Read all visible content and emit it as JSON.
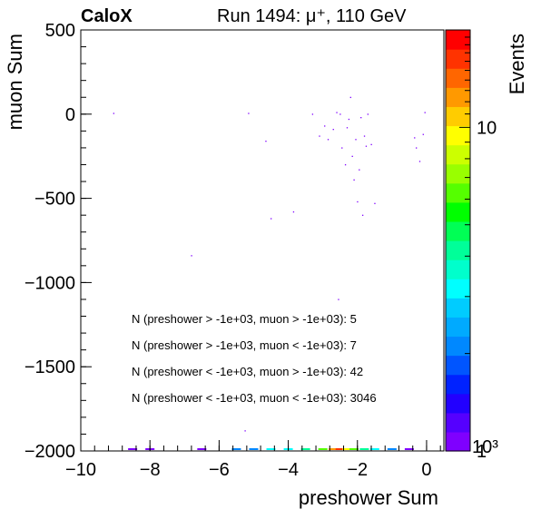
{
  "header": {
    "experiment": "CaloX",
    "run_info": "Run 1494:   μ⁺, 110 GeV"
  },
  "chart_data": {
    "type": "heatmap",
    "xlabel": "preshower Sum",
    "ylabel": "muon Sum",
    "zlabel": "Events",
    "xlim": [
      -10,
      0.5
    ],
    "ylim": [
      -2000,
      500
    ],
    "x_ticks": [
      "−10",
      "−8",
      "−6",
      "−4",
      "−2",
      "0"
    ],
    "x_tick_values": [
      -10,
      -8,
      -6,
      -4,
      -2,
      0
    ],
    "y_ticks": [
      "500",
      "0",
      "−500",
      "−1000",
      "−1500",
      "−2000"
    ],
    "y_tick_values": [
      500,
      0,
      -500,
      -1000,
      -1500,
      -2000
    ],
    "z_scale": "log",
    "z_range": [
      1,
      20
    ],
    "z_tick_labels": [
      "1",
      "10"
    ],
    "z_tick_values": [
      1,
      10
    ],
    "z_corner_label": "10³",
    "palette": [
      "#7f00ff",
      "#5500ff",
      "#2200ff",
      "#0022ff",
      "#0055ff",
      "#0088ff",
      "#00aaff",
      "#00ccff",
      "#00ffff",
      "#00ffcc",
      "#00ff99",
      "#00ff55",
      "#00ff00",
      "#55ff00",
      "#99ff00",
      "#ccff00",
      "#ffff00",
      "#ffcc00",
      "#ff9900",
      "#ff6600",
      "#ff3300",
      "#ff0000"
    ],
    "annotations": [
      "N (preshower > -1e+03, muon > -1e+03): 5",
      "N (preshower > -1e+03, muon < -1e+03): 7",
      "N (preshower < -1e+03, muon > -1e+03): 42",
      "N (preshower < -1e+03, muon < -1e+03): 3046"
    ],
    "points": [
      {
        "x": -9.05,
        "y": 5,
        "z": 1
      },
      {
        "x": -5.15,
        "y": 5,
        "z": 1
      },
      {
        "x": -4.65,
        "y": -160,
        "z": 1
      },
      {
        "x": -4.5,
        "y": -620,
        "z": 1
      },
      {
        "x": -3.85,
        "y": -580,
        "z": 1
      },
      {
        "x": -6.8,
        "y": -840,
        "z": 1
      },
      {
        "x": -3.3,
        "y": 0,
        "z": 1
      },
      {
        "x": -3.1,
        "y": -130,
        "z": 1
      },
      {
        "x": -2.95,
        "y": -70,
        "z": 1
      },
      {
        "x": -2.85,
        "y": -150,
        "z": 1
      },
      {
        "x": -2.7,
        "y": -90,
        "z": 1
      },
      {
        "x": -2.6,
        "y": 10,
        "z": 1
      },
      {
        "x": -2.5,
        "y": 0,
        "z": 1
      },
      {
        "x": -2.45,
        "y": -200,
        "z": 1
      },
      {
        "x": -2.35,
        "y": -300,
        "z": 1
      },
      {
        "x": -2.3,
        "y": -80,
        "z": 1
      },
      {
        "x": -2.25,
        "y": -30,
        "z": 1
      },
      {
        "x": -2.2,
        "y": 100,
        "z": 1
      },
      {
        "x": -2.15,
        "y": -250,
        "z": 1
      },
      {
        "x": -2.1,
        "y": -390,
        "z": 1
      },
      {
        "x": -2.05,
        "y": -150,
        "z": 1
      },
      {
        "x": -2.0,
        "y": -520,
        "z": 1
      },
      {
        "x": -1.95,
        "y": -330,
        "z": 1
      },
      {
        "x": -1.9,
        "y": -20,
        "z": 1
      },
      {
        "x": -1.85,
        "y": -600,
        "z": 1
      },
      {
        "x": -1.8,
        "y": -130,
        "z": 1
      },
      {
        "x": -1.75,
        "y": -190,
        "z": 1
      },
      {
        "x": -1.7,
        "y": 0,
        "z": 1
      },
      {
        "x": -1.6,
        "y": -180,
        "z": 1
      },
      {
        "x": -1.5,
        "y": -530,
        "z": 1
      },
      {
        "x": -0.35,
        "y": -140,
        "z": 1
      },
      {
        "x": -0.3,
        "y": -200,
        "z": 1
      },
      {
        "x": -0.2,
        "y": -280,
        "z": 1
      },
      {
        "x": -0.1,
        "y": -120,
        "z": 1
      },
      {
        "x": -0.05,
        "y": 10,
        "z": 1
      },
      {
        "x": -2.55,
        "y": -1100,
        "z": 1
      },
      {
        "x": -5.25,
        "y": -1880,
        "z": 1
      }
    ],
    "bottom_row": [
      {
        "x": -8.5,
        "z": 1
      },
      {
        "x": -8.0,
        "z": 1
      },
      {
        "x": -6.5,
        "z": 1
      },
      {
        "x": -5.5,
        "z": 2
      },
      {
        "x": -5.0,
        "z": 2
      },
      {
        "x": -4.5,
        "z": 3
      },
      {
        "x": -4.0,
        "z": 3
      },
      {
        "x": -3.5,
        "z": 4
      },
      {
        "x": -3.0,
        "z": 6
      },
      {
        "x": -2.7,
        "z": 12
      },
      {
        "x": -2.5,
        "z": 16
      },
      {
        "x": -2.3,
        "z": 10
      },
      {
        "x": -2.1,
        "z": 6
      },
      {
        "x": -1.8,
        "z": 4
      },
      {
        "x": -1.5,
        "z": 3
      },
      {
        "x": -1.0,
        "z": 2
      },
      {
        "x": -0.5,
        "z": 1
      }
    ]
  }
}
